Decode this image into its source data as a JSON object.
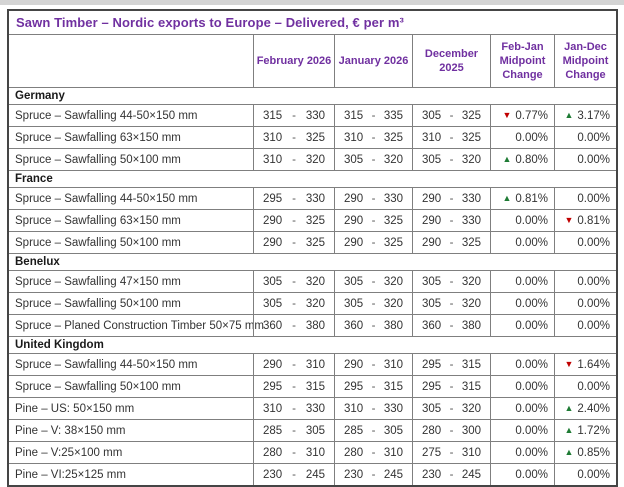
{
  "title": "Sawn Timber – Nordic exports to Europe – Delivered, € per m³",
  "columns": [
    "February 2026",
    "January 2026",
    "December 2025",
    "Feb-Jan Midpoint Change",
    "Jan-Dec Midpoint Change"
  ],
  "range_separator": "-",
  "arrows": {
    "up": "▲",
    "down": "▼"
  },
  "colors": {
    "accent": "#7030A0",
    "positive": "#1E7B34",
    "negative": "#C00000",
    "border": "#7f7f7f",
    "outer_border": "#454545",
    "text": "#333333",
    "top_strip": "#d4d4d4"
  },
  "sections": [
    {
      "name": "Germany",
      "rows": [
        {
          "product": "Spruce – Sawfalling 44-50×150 mm",
          "prices": [
            {
              "low": "315",
              "high": "330"
            },
            {
              "low": "315",
              "high": "335"
            },
            {
              "low": "305",
              "high": "325"
            }
          ],
          "changes": [
            {
              "dir": "down",
              "value": "0.77%"
            },
            {
              "dir": "up",
              "value": "3.17%"
            }
          ]
        },
        {
          "product": "Spruce – Sawfalling 63×150 mm",
          "prices": [
            {
              "low": "310",
              "high": "325"
            },
            {
              "low": "310",
              "high": "325"
            },
            {
              "low": "310",
              "high": "325"
            }
          ],
          "changes": [
            {
              "dir": null,
              "value": "0.00%"
            },
            {
              "dir": null,
              "value": "0.00%"
            }
          ]
        },
        {
          "product": "Spruce – Sawfalling 50×100 mm",
          "prices": [
            {
              "low": "310",
              "high": "320"
            },
            {
              "low": "305",
              "high": "320"
            },
            {
              "low": "305",
              "high": "320"
            }
          ],
          "changes": [
            {
              "dir": "up",
              "value": "0.80%"
            },
            {
              "dir": null,
              "value": "0.00%"
            }
          ]
        }
      ]
    },
    {
      "name": "France",
      "rows": [
        {
          "product": "Spruce – Sawfalling 44-50×150 mm",
          "prices": [
            {
              "low": "295",
              "high": "330"
            },
            {
              "low": "290",
              "high": "330"
            },
            {
              "low": "290",
              "high": "330"
            }
          ],
          "changes": [
            {
              "dir": "up",
              "value": "0.81%"
            },
            {
              "dir": null,
              "value": "0.00%"
            }
          ]
        },
        {
          "product": "Spruce – Sawfalling 63×150 mm",
          "prices": [
            {
              "low": "290",
              "high": "325"
            },
            {
              "low": "290",
              "high": "325"
            },
            {
              "low": "290",
              "high": "330"
            }
          ],
          "changes": [
            {
              "dir": null,
              "value": "0.00%"
            },
            {
              "dir": "down",
              "value": "0.81%"
            }
          ]
        },
        {
          "product": "Spruce – Sawfalling 50×100 mm",
          "prices": [
            {
              "low": "290",
              "high": "325"
            },
            {
              "low": "290",
              "high": "325"
            },
            {
              "low": "290",
              "high": "325"
            }
          ],
          "changes": [
            {
              "dir": null,
              "value": "0.00%"
            },
            {
              "dir": null,
              "value": "0.00%"
            }
          ]
        }
      ]
    },
    {
      "name": "Benelux",
      "rows": [
        {
          "product": "Spruce – Sawfalling 47×150 mm",
          "prices": [
            {
              "low": "305",
              "high": "320"
            },
            {
              "low": "305",
              "high": "320"
            },
            {
              "low": "305",
              "high": "320"
            }
          ],
          "changes": [
            {
              "dir": null,
              "value": "0.00%"
            },
            {
              "dir": null,
              "value": "0.00%"
            }
          ]
        },
        {
          "product": "Spruce – Sawfalling 50×100 mm",
          "prices": [
            {
              "low": "305",
              "high": "320"
            },
            {
              "low": "305",
              "high": "320"
            },
            {
              "low": "305",
              "high": "320"
            }
          ],
          "changes": [
            {
              "dir": null,
              "value": "0.00%"
            },
            {
              "dir": null,
              "value": "0.00%"
            }
          ]
        },
        {
          "product": "Spruce – Planed Construction Timber 50×75 mm",
          "prices": [
            {
              "low": "360",
              "high": "380"
            },
            {
              "low": "360",
              "high": "380"
            },
            {
              "low": "360",
              "high": "380"
            }
          ],
          "changes": [
            {
              "dir": null,
              "value": "0.00%"
            },
            {
              "dir": null,
              "value": "0.00%"
            }
          ]
        }
      ]
    },
    {
      "name": "United Kingdom",
      "rows": [
        {
          "product": "Spruce – Sawfalling 44-50×150 mm",
          "prices": [
            {
              "low": "290",
              "high": "310"
            },
            {
              "low": "290",
              "high": "310"
            },
            {
              "low": "295",
              "high": "315"
            }
          ],
          "changes": [
            {
              "dir": null,
              "value": "0.00%"
            },
            {
              "dir": "down",
              "value": "1.64%"
            }
          ]
        },
        {
          "product": "Spruce – Sawfalling 50×100 mm",
          "prices": [
            {
              "low": "295",
              "high": "315"
            },
            {
              "low": "295",
              "high": "315"
            },
            {
              "low": "295",
              "high": "315"
            }
          ],
          "changes": [
            {
              "dir": null,
              "value": "0.00%"
            },
            {
              "dir": null,
              "value": "0.00%"
            }
          ]
        },
        {
          "product": "Pine – US: 50×150 mm",
          "prices": [
            {
              "low": "310",
              "high": "330"
            },
            {
              "low": "310",
              "high": "330"
            },
            {
              "low": "305",
              "high": "320"
            }
          ],
          "changes": [
            {
              "dir": null,
              "value": "0.00%"
            },
            {
              "dir": "up",
              "value": "2.40%"
            }
          ]
        },
        {
          "product": "Pine – V: 38×150 mm",
          "prices": [
            {
              "low": "285",
              "high": "305"
            },
            {
              "low": "285",
              "high": "305"
            },
            {
              "low": "280",
              "high": "300"
            }
          ],
          "changes": [
            {
              "dir": null,
              "value": "0.00%"
            },
            {
              "dir": "up",
              "value": "1.72%"
            }
          ]
        },
        {
          "product": "Pine – V:25×100 mm",
          "prices": [
            {
              "low": "280",
              "high": "310"
            },
            {
              "low": "280",
              "high": "310"
            },
            {
              "low": "275",
              "high": "310"
            }
          ],
          "changes": [
            {
              "dir": null,
              "value": "0.00%"
            },
            {
              "dir": "up",
              "value": "0.85%"
            }
          ]
        },
        {
          "product": "Pine – VI:25×125 mm",
          "prices": [
            {
              "low": "230",
              "high": "245"
            },
            {
              "low": "230",
              "high": "245"
            },
            {
              "low": "230",
              "high": "245"
            }
          ],
          "changes": [
            {
              "dir": null,
              "value": "0.00%"
            },
            {
              "dir": null,
              "value": "0.00%"
            }
          ]
        }
      ]
    }
  ]
}
